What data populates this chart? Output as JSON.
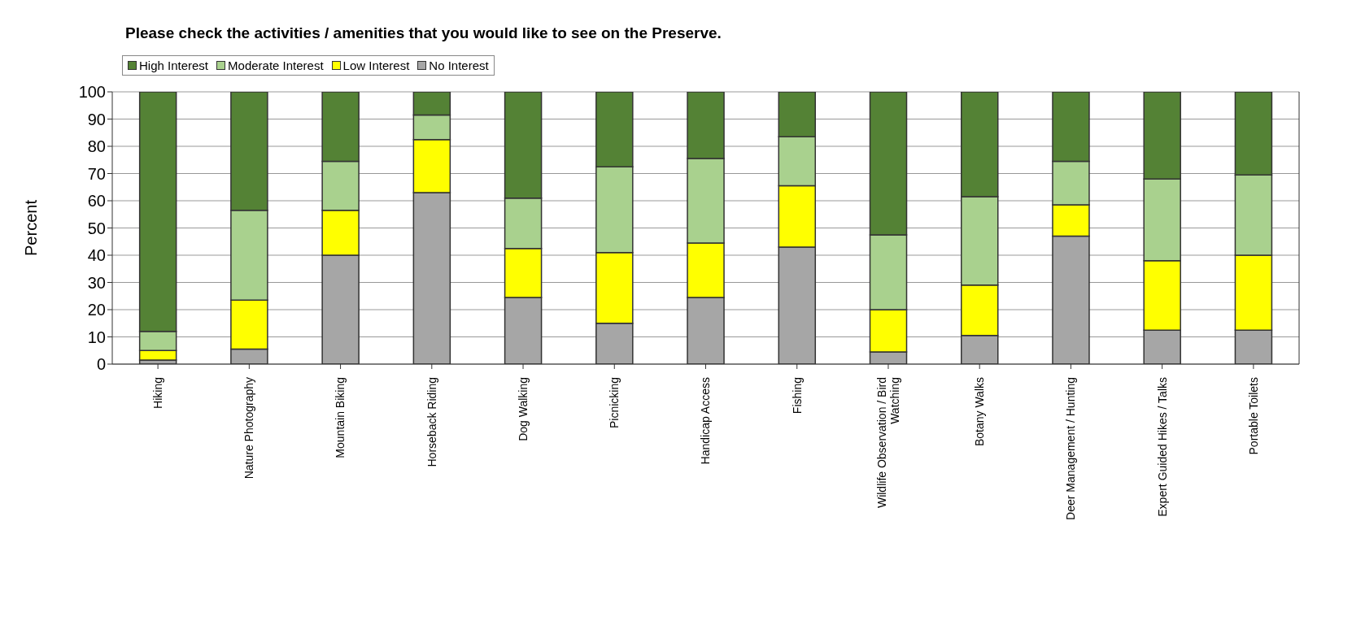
{
  "chart_data": {
    "type": "bar",
    "title": "Please check the activities / amenities that you would like to see on the Preserve.",
    "ylabel": "Percent",
    "categories": [
      "Hiking",
      "Nature Photography",
      "Mountain Biking",
      "Horseback Riding",
      "Dog Walking",
      "Picnicking",
      "Handicap Access",
      "Fishing",
      "Wildlife Observation / Bird Watching",
      "Botany Walks",
      "Deer Management / Hunting",
      "Expert Guided Hikes / Talks",
      "Portable Toilets"
    ],
    "stacked": true,
    "ylim": [
      0,
      100
    ],
    "yticks": [
      0,
      10,
      20,
      30,
      40,
      50,
      60,
      70,
      80,
      90,
      100
    ],
    "grid": "y",
    "legend": "top left",
    "series": [
      {
        "name": "No Interest",
        "color": "#a6a6a6",
        "values": [
          1.5,
          5.5,
          40,
          63,
          24.5,
          15,
          24.5,
          43,
          4.5,
          10.5,
          47,
          12.5,
          12.5
        ]
      },
      {
        "name": "Low Interest",
        "color": "#ffff00",
        "values": [
          3.5,
          18,
          16.5,
          19.5,
          18,
          26,
          20,
          22.5,
          15.5,
          18.5,
          11.5,
          25.5,
          27.5
        ]
      },
      {
        "name": "Moderate Interest",
        "color": "#a9d18e",
        "values": [
          7,
          33,
          18,
          9,
          18.5,
          31.5,
          31,
          18,
          27.5,
          32.5,
          16,
          30,
          29.5
        ]
      },
      {
        "name": "High Interest",
        "color": "#548235",
        "values": [
          88,
          43.5,
          25.5,
          8.5,
          39,
          27.5,
          24.5,
          16.5,
          52.5,
          38.5,
          25.5,
          32,
          30.5
        ]
      }
    ]
  }
}
